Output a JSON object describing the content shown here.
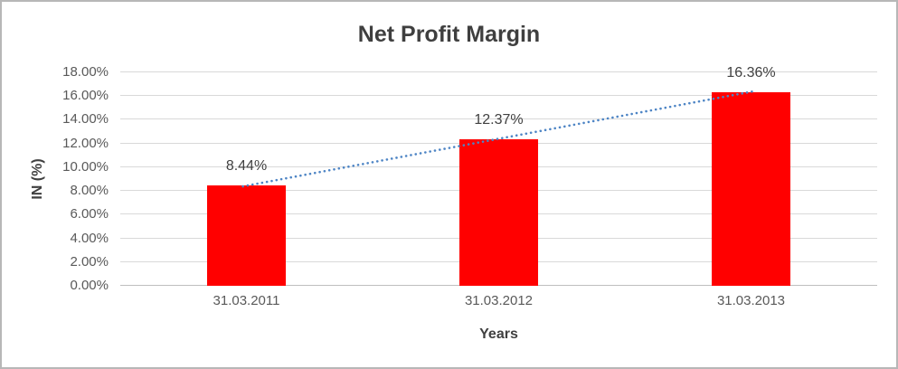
{
  "chart_data": {
    "type": "bar",
    "title": "Net Profit Margin",
    "xlabel": "Years",
    "ylabel": "IN (%)",
    "categories": [
      "31.03.2011",
      "31.03.2012",
      "31.03.2013"
    ],
    "values": [
      8.44,
      12.37,
      16.36
    ],
    "data_labels": [
      "8.44%",
      "12.37%",
      "16.36%"
    ],
    "ylim": [
      0,
      18
    ],
    "ytick_step": 2,
    "ytick_labels": [
      "0.00%",
      "2.00%",
      "4.00%",
      "6.00%",
      "8.00%",
      "10.00%",
      "12.00%",
      "14.00%",
      "16.00%",
      "18.00%"
    ],
    "grid": true,
    "legend": "none",
    "bar_color": "#FF0000",
    "trendline": {
      "type": "linear",
      "style": "dotted",
      "color": "#4E85C5",
      "connects": "bar-top centers"
    }
  },
  "style": {
    "title_color": "#3F3F3F",
    "axis_title_color": "#404040",
    "tick_label_color": "#595959",
    "data_label_color": "#404040",
    "gridline_color": "#D9D9D9",
    "axis_line_color": "#BFBFBF",
    "frame_border_color": "#B7B7B7",
    "background_color": "#FFFFFF"
  }
}
